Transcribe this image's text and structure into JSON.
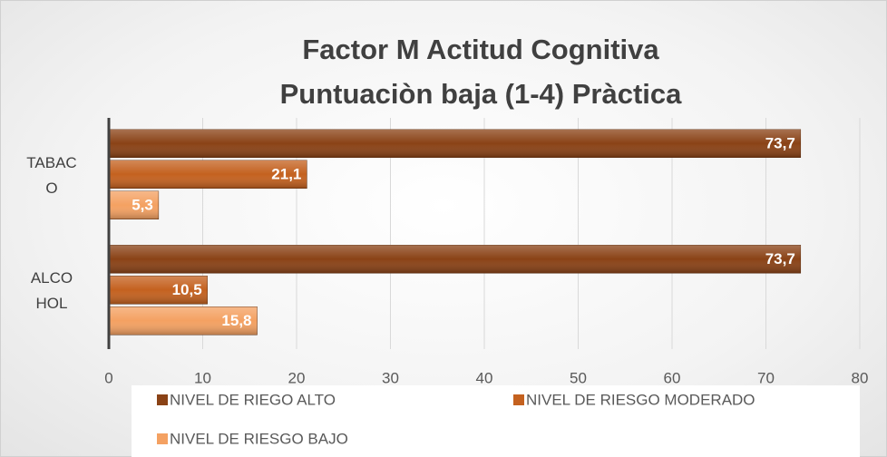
{
  "chart_data": {
    "type": "bar",
    "orientation": "horizontal",
    "title": [
      "Factor M Actitud Cognitiva",
      "Puntuaciòn baja (1-4) Pràctica"
    ],
    "categories": [
      "TABACO",
      "ALCOHOL"
    ],
    "series": [
      {
        "name": "NIVEL DE RIEGO ALTO",
        "color": "#8a4216",
        "values": [
          73.7,
          73.7
        ],
        "value_labels": [
          "73,7",
          "73,7"
        ]
      },
      {
        "name": "NIVEL DE RIESGO MODERADO",
        "color": "#c4611f",
        "values": [
          21.1,
          10.5
        ],
        "value_labels": [
          "21,1",
          "10,5"
        ]
      },
      {
        "name": "NIVEL DE RIESGO BAJO",
        "color": "#f4a162",
        "values": [
          5.3,
          15.8
        ],
        "value_labels": [
          "5,3",
          "15,8"
        ]
      }
    ],
    "xlim": [
      0,
      80
    ],
    "xticks": [
      0,
      10,
      20,
      30,
      40,
      50,
      60,
      70,
      80
    ],
    "grid": true,
    "legend": "bottom"
  }
}
